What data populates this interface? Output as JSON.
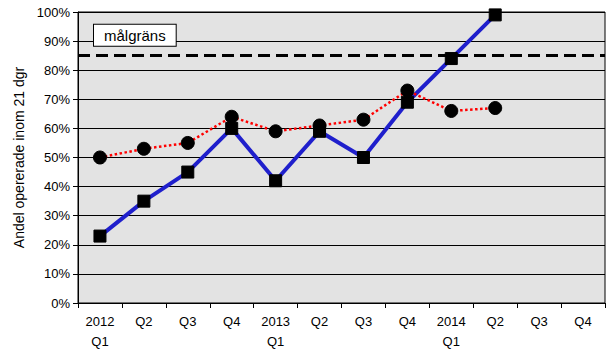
{
  "chart_data": {
    "type": "line",
    "y_label": "Andel opererade inom 21 dgr",
    "categories": [
      "2012\nQ1",
      "Q2",
      "Q3",
      "Q4",
      "2013\nQ1",
      "Q2",
      "Q3",
      "Q4",
      "2014\nQ1",
      "Q2",
      "Q3",
      "Q4"
    ],
    "series": [
      {
        "color": "#1f1fcc",
        "marker": "square",
        "line_style": "solid",
        "values": [
          23,
          35,
          45,
          60,
          42,
          59,
          50,
          69,
          84,
          99,
          null,
          null
        ]
      },
      {
        "color": "#ff0000",
        "marker": "circle",
        "line_style": "dotted",
        "values": [
          50,
          53,
          55,
          64,
          59,
          61,
          63,
          73,
          66,
          67,
          null,
          null
        ]
      }
    ],
    "target_line": {
      "value": 85,
      "label": "målgräns",
      "line_style": "dashed"
    },
    "ylim": [
      0,
      100
    ],
    "yticks": [
      {
        "value": 0,
        "label": "0%"
      },
      {
        "value": 10,
        "label": "10%"
      },
      {
        "value": 20,
        "label": "20%"
      },
      {
        "value": 30,
        "label": "30%"
      },
      {
        "value": 40,
        "label": "40%"
      },
      {
        "value": 50,
        "label": "50%"
      },
      {
        "value": 60,
        "label": "60%"
      },
      {
        "value": 70,
        "label": "70%"
      },
      {
        "value": 80,
        "label": "80%"
      },
      {
        "value": 90,
        "label": "90%"
      },
      {
        "value": 100,
        "label": "100%"
      }
    ],
    "grid": true
  }
}
